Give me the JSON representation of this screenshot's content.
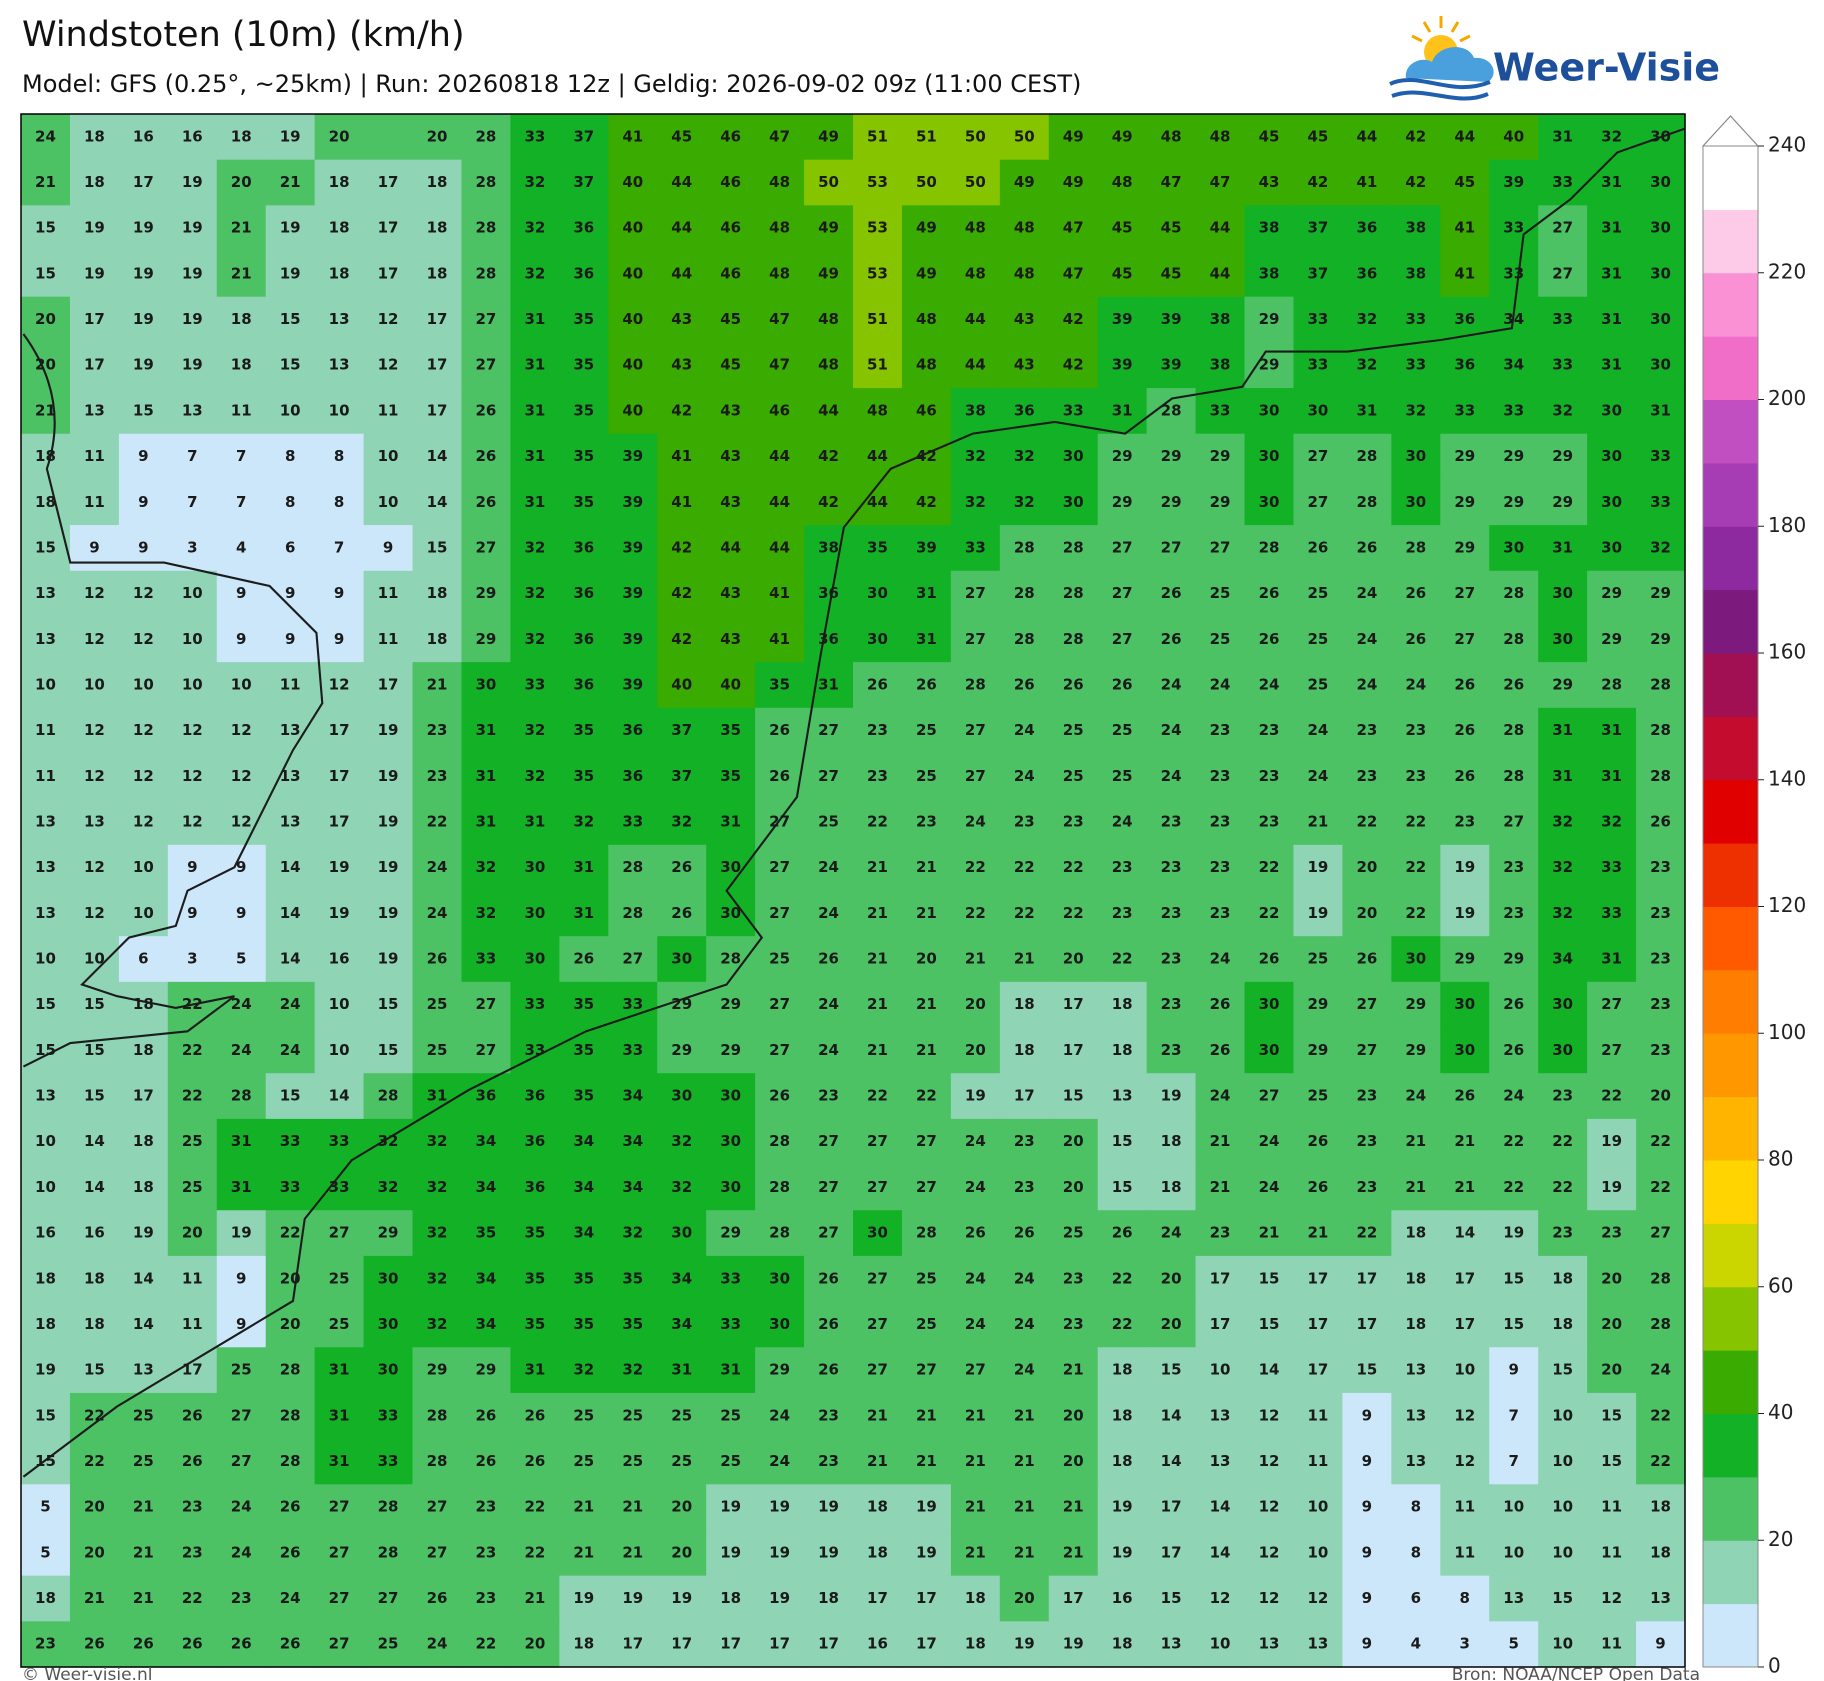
{
  "header": {
    "title": "Windstoten (10m) (km/h)",
    "subtitle": "Model: GFS (0.25°, ~25km)  |  Run: 20260818 12z  |  Geldig: 2026-09-02 09z (11:00 CEST)"
  },
  "logo": "Weer-Visie",
  "map": {
    "type": "heatmap",
    "values": [
      [
        24,
        18,
        16,
        16,
        18,
        19,
        20,
        null,
        20,
        28,
        33,
        37,
        41,
        45,
        46,
        47,
        49,
        51,
        51,
        50,
        50,
        49,
        49,
        48,
        48,
        45,
        45,
        44,
        42,
        44,
        40,
        31,
        32,
        30
      ],
      [
        21,
        18,
        17,
        19,
        20,
        21,
        18,
        17,
        18,
        28,
        32,
        37,
        40,
        44,
        46,
        48,
        50,
        53,
        50,
        50,
        49,
        49,
        48,
        47,
        47,
        43,
        42,
        41,
        42,
        45,
        39,
        33,
        31,
        30
      ],
      [
        15,
        19,
        19,
        19,
        21,
        19,
        18,
        17,
        18,
        28,
        32,
        36,
        40,
        44,
        46,
        48,
        49,
        53,
        49,
        48,
        48,
        47,
        45,
        45,
        44,
        38,
        37,
        36,
        38,
        41,
        33,
        27,
        31,
        30
      ],
      [
        15,
        19,
        19,
        19,
        21,
        19,
        18,
        17,
        18,
        28,
        32,
        36,
        40,
        44,
        46,
        48,
        49,
        53,
        49,
        48,
        48,
        47,
        45,
        45,
        44,
        38,
        37,
        36,
        38,
        41,
        33,
        27,
        31,
        30
      ],
      [
        20,
        17,
        19,
        19,
        18,
        15,
        13,
        12,
        17,
        27,
        31,
        35,
        40,
        43,
        45,
        47,
        48,
        51,
        48,
        44,
        43,
        42,
        39,
        39,
        38,
        29,
        33,
        32,
        33,
        36,
        34,
        33,
        31,
        30
      ],
      [
        20,
        17,
        19,
        19,
        18,
        15,
        13,
        12,
        17,
        27,
        31,
        35,
        40,
        43,
        45,
        47,
        48,
        51,
        48,
        44,
        43,
        42,
        39,
        39,
        38,
        29,
        33,
        32,
        33,
        36,
        34,
        33,
        31,
        30
      ],
      [
        21,
        13,
        15,
        13,
        11,
        10,
        10,
        11,
        17,
        26,
        31,
        35,
        40,
        42,
        43,
        46,
        44,
        48,
        46,
        38,
        36,
        33,
        31,
        28,
        33,
        30,
        30,
        31,
        32,
        33,
        33,
        32,
        30,
        31
      ],
      [
        18,
        11,
        9,
        7,
        7,
        8,
        8,
        10,
        14,
        26,
        31,
        35,
        39,
        41,
        43,
        44,
        42,
        44,
        42,
        32,
        32,
        30,
        29,
        29,
        29,
        30,
        27,
        28,
        30,
        29,
        29,
        29,
        30,
        33
      ],
      [
        18,
        11,
        9,
        7,
        7,
        8,
        8,
        10,
        14,
        26,
        31,
        35,
        39,
        41,
        43,
        44,
        42,
        44,
        42,
        32,
        32,
        30,
        29,
        29,
        29,
        30,
        27,
        28,
        30,
        29,
        29,
        29,
        30,
        33
      ],
      [
        15,
        9,
        9,
        3,
        4,
        6,
        7,
        9,
        15,
        27,
        32,
        36,
        39,
        42,
        44,
        44,
        38,
        35,
        39,
        33,
        28,
        28,
        27,
        27,
        27,
        28,
        26,
        26,
        28,
        29,
        30,
        31,
        30,
        32
      ],
      [
        13,
        12,
        12,
        10,
        9,
        9,
        9,
        11,
        18,
        29,
        32,
        36,
        39,
        42,
        43,
        41,
        36,
        30,
        31,
        27,
        28,
        28,
        27,
        26,
        25,
        26,
        25,
        24,
        26,
        27,
        28,
        30,
        29,
        29
      ],
      [
        13,
        12,
        12,
        10,
        9,
        9,
        9,
        11,
        18,
        29,
        32,
        36,
        39,
        42,
        43,
        41,
        36,
        30,
        31,
        27,
        28,
        28,
        27,
        26,
        25,
        26,
        25,
        24,
        26,
        27,
        28,
        30,
        29,
        29
      ],
      [
        10,
        10,
        10,
        10,
        10,
        11,
        12,
        17,
        21,
        30,
        33,
        36,
        39,
        40,
        40,
        35,
        31,
        26,
        26,
        28,
        26,
        26,
        26,
        24,
        24,
        24,
        25,
        24,
        24,
        26,
        26,
        29,
        28,
        28
      ],
      [
        11,
        12,
        12,
        12,
        12,
        13,
        17,
        19,
        23,
        31,
        32,
        35,
        36,
        37,
        35,
        26,
        27,
        23,
        25,
        27,
        24,
        25,
        25,
        24,
        23,
        23,
        24,
        23,
        23,
        26,
        28,
        31,
        31,
        28
      ],
      [
        11,
        12,
        12,
        12,
        12,
        13,
        17,
        19,
        23,
        31,
        32,
        35,
        36,
        37,
        35,
        26,
        27,
        23,
        25,
        27,
        24,
        25,
        25,
        24,
        23,
        23,
        24,
        23,
        23,
        26,
        28,
        31,
        31,
        28
      ],
      [
        13,
        13,
        12,
        12,
        12,
        13,
        17,
        19,
        22,
        31,
        31,
        32,
        33,
        32,
        31,
        27,
        25,
        22,
        23,
        24,
        23,
        23,
        24,
        23,
        23,
        23,
        21,
        22,
        22,
        23,
        27,
        32,
        32,
        26
      ],
      [
        13,
        12,
        10,
        9,
        9,
        14,
        19,
        19,
        24,
        32,
        30,
        31,
        28,
        26,
        30,
        27,
        24,
        21,
        21,
        22,
        22,
        22,
        23,
        23,
        23,
        22,
        19,
        20,
        22,
        19,
        23,
        32,
        33,
        23
      ],
      [
        13,
        12,
        10,
        9,
        9,
        14,
        19,
        19,
        24,
        32,
        30,
        31,
        28,
        26,
        30,
        27,
        24,
        21,
        21,
        22,
        22,
        22,
        23,
        23,
        23,
        22,
        19,
        20,
        22,
        19,
        23,
        32,
        33,
        23
      ],
      [
        10,
        10,
        6,
        3,
        5,
        14,
        16,
        19,
        26,
        33,
        30,
        26,
        27,
        30,
        28,
        25,
        26,
        21,
        20,
        21,
        21,
        20,
        22,
        23,
        24,
        26,
        25,
        26,
        30,
        29,
        29,
        34,
        31,
        23
      ],
      [
        15,
        15,
        18,
        22,
        24,
        24,
        10,
        15,
        25,
        27,
        33,
        35,
        33,
        29,
        29,
        27,
        24,
        21,
        21,
        20,
        18,
        17,
        18,
        23,
        26,
        30,
        29,
        27,
        29,
        30,
        26,
        30,
        27,
        23
      ],
      [
        15,
        15,
        18,
        22,
        24,
        24,
        10,
        15,
        25,
        27,
        33,
        35,
        33,
        29,
        29,
        27,
        24,
        21,
        21,
        20,
        18,
        17,
        18,
        23,
        26,
        30,
        29,
        27,
        29,
        30,
        26,
        30,
        27,
        23
      ],
      [
        13,
        15,
        17,
        22,
        28,
        15,
        14,
        28,
        31,
        36,
        36,
        35,
        34,
        30,
        30,
        26,
        23,
        22,
        22,
        19,
        17,
        15,
        13,
        19,
        24,
        27,
        25,
        23,
        24,
        26,
        24,
        23,
        22,
        20
      ],
      [
        10,
        14,
        18,
        25,
        31,
        33,
        33,
        32,
        32,
        34,
        36,
        34,
        34,
        32,
        30,
        28,
        27,
        27,
        27,
        24,
        23,
        20,
        15,
        18,
        21,
        24,
        26,
        23,
        21,
        21,
        22,
        22,
        19,
        22
      ],
      [
        10,
        14,
        18,
        25,
        31,
        33,
        33,
        32,
        32,
        34,
        36,
        34,
        34,
        32,
        30,
        28,
        27,
        27,
        27,
        24,
        23,
        20,
        15,
        18,
        21,
        24,
        26,
        23,
        21,
        21,
        22,
        22,
        19,
        22
      ],
      [
        16,
        16,
        19,
        20,
        19,
        22,
        27,
        29,
        32,
        35,
        35,
        34,
        32,
        30,
        29,
        28,
        27,
        30,
        28,
        26,
        26,
        25,
        26,
        24,
        23,
        21,
        21,
        22,
        18,
        14,
        19,
        23,
        23,
        27
      ],
      [
        18,
        18,
        14,
        11,
        9,
        20,
        25,
        30,
        32,
        34,
        35,
        35,
        35,
        34,
        33,
        30,
        26,
        27,
        25,
        24,
        24,
        23,
        22,
        20,
        17,
        15,
        17,
        17,
        18,
        17,
        15,
        18,
        20,
        28
      ],
      [
        18,
        18,
        14,
        11,
        9,
        20,
        25,
        30,
        32,
        34,
        35,
        35,
        35,
        34,
        33,
        30,
        26,
        27,
        25,
        24,
        24,
        23,
        22,
        20,
        17,
        15,
        17,
        17,
        18,
        17,
        15,
        18,
        20,
        28
      ],
      [
        19,
        15,
        13,
        17,
        25,
        28,
        31,
        30,
        29,
        29,
        31,
        32,
        32,
        31,
        31,
        29,
        26,
        27,
        27,
        27,
        24,
        21,
        18,
        15,
        10,
        14,
        17,
        15,
        13,
        10,
        9,
        15,
        20,
        24
      ],
      [
        15,
        22,
        25,
        26,
        27,
        28,
        31,
        33,
        28,
        26,
        26,
        25,
        25,
        25,
        25,
        24,
        23,
        21,
        21,
        21,
        21,
        20,
        18,
        14,
        13,
        12,
        11,
        9,
        13,
        12,
        7,
        10,
        15,
        22
      ],
      [
        15,
        22,
        25,
        26,
        27,
        28,
        31,
        33,
        28,
        26,
        26,
        25,
        25,
        25,
        25,
        24,
        23,
        21,
        21,
        21,
        21,
        20,
        18,
        14,
        13,
        12,
        11,
        9,
        13,
        12,
        7,
        10,
        15,
        22
      ],
      [
        5,
        20,
        21,
        23,
        24,
        26,
        27,
        28,
        27,
        23,
        22,
        21,
        21,
        20,
        19,
        19,
        19,
        18,
        19,
        21,
        21,
        21,
        19,
        17,
        14,
        12,
        10,
        9,
        8,
        11,
        10,
        10,
        11,
        18
      ],
      [
        5,
        20,
        21,
        23,
        24,
        26,
        27,
        28,
        27,
        23,
        22,
        21,
        21,
        20,
        19,
        19,
        19,
        18,
        19,
        21,
        21,
        21,
        19,
        17,
        14,
        12,
        10,
        9,
        8,
        11,
        10,
        10,
        11,
        18
      ],
      [
        18,
        21,
        21,
        22,
        23,
        24,
        27,
        27,
        26,
        23,
        21,
        19,
        19,
        19,
        18,
        19,
        18,
        17,
        17,
        18,
        20,
        17,
        16,
        15,
        12,
        12,
        12,
        9,
        6,
        8,
        13,
        15,
        12,
        13
      ],
      [
        23,
        26,
        26,
        26,
        26,
        26,
        27,
        25,
        24,
        22,
        20,
        18,
        17,
        17,
        17,
        17,
        17,
        16,
        17,
        18,
        19,
        19,
        18,
        13,
        10,
        13,
        13,
        9,
        4,
        3,
        5,
        10,
        11,
        9
      ]
    ]
  },
  "colorbar": {
    "levels": [
      0,
      10,
      20,
      30,
      40,
      50,
      60,
      70,
      80,
      90,
      100,
      110,
      120,
      130,
      140,
      150,
      160,
      170,
      180,
      190,
      200,
      210,
      220,
      230,
      240
    ],
    "colors": [
      "#cde7fa",
      "#8fd4b4",
      "#4cc265",
      "#13b226",
      "#3aab00",
      "#86c400",
      "#cbd600",
      "#ffd400",
      "#ffb400",
      "#ff9800",
      "#ff7d00",
      "#ff5a00",
      "#ee3000",
      "#e00000",
      "#c40c2e",
      "#a01052",
      "#7d1a7d",
      "#8e2aa0",
      "#a63db5",
      "#c14fc1",
      "#f06ec8",
      "#f991d4",
      "#fdcbe8",
      "#ffffff"
    ],
    "ticks": [
      0,
      20,
      40,
      60,
      80,
      100,
      120,
      140,
      160,
      180,
      200,
      220,
      240
    ]
  },
  "footer": {
    "left": "© Weer-visie.nl",
    "right": "Bron: NOAA/NCEP Open Data"
  }
}
